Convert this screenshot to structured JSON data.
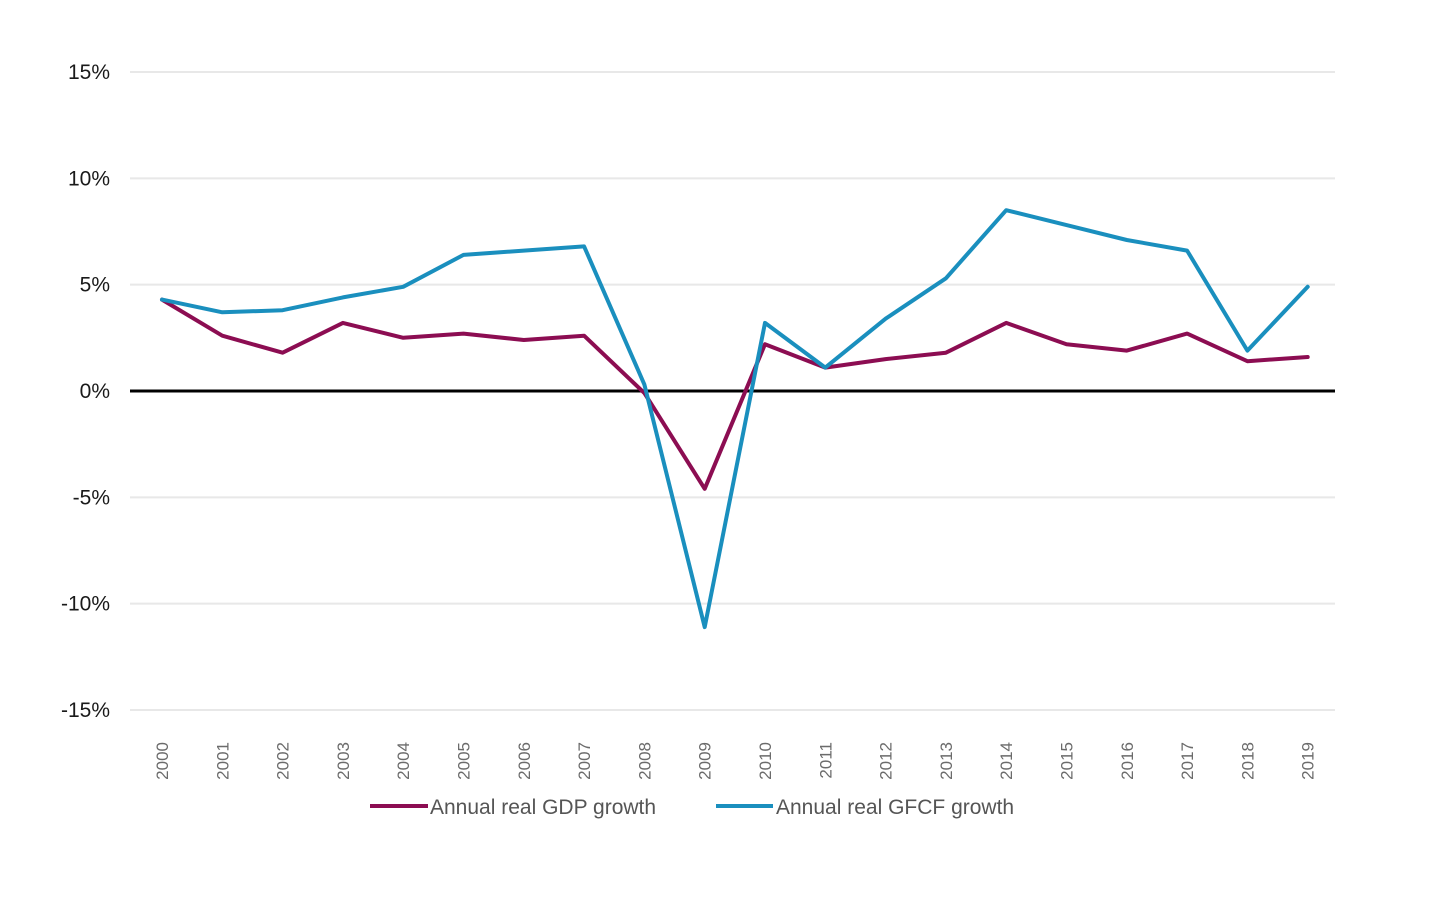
{
  "chart_data": {
    "type": "line",
    "title": "",
    "xlabel": "",
    "ylabel": "",
    "categories": [
      "2000",
      "2001",
      "2002",
      "2003",
      "2004",
      "2005",
      "2006",
      "2007",
      "2008",
      "2009",
      "2010",
      "2011",
      "2012",
      "2013",
      "2014",
      "2015",
      "2016",
      "2017",
      "2018",
      "2019"
    ],
    "series": [
      {
        "name": "Annual real GDP growth",
        "color": "#8c0d52",
        "values": [
          4.3,
          2.6,
          1.8,
          3.2,
          2.5,
          2.7,
          2.4,
          2.6,
          -0.1,
          -4.6,
          2.2,
          1.1,
          1.5,
          1.8,
          3.2,
          2.2,
          1.9,
          2.7,
          1.4,
          1.6
        ]
      },
      {
        "name": "Annual real GFCF growth",
        "color": "#1a8fbe",
        "values": [
          4.3,
          3.7,
          3.8,
          4.4,
          4.9,
          6.4,
          6.6,
          6.8,
          0.3,
          -11.1,
          3.2,
          1.1,
          3.4,
          5.3,
          8.5,
          7.8,
          7.1,
          6.6,
          1.9,
          4.9
        ]
      }
    ],
    "ylim": [
      -15,
      15
    ],
    "yticks": [
      {
        "value": 15,
        "label": "15%"
      },
      {
        "value": 10,
        "label": "10%"
      },
      {
        "value": 5,
        "label": "5%"
      },
      {
        "value": 0,
        "label": "0%"
      },
      {
        "value": -5,
        "label": "-5%"
      },
      {
        "value": -10,
        "label": "-10%"
      },
      {
        "value": -15,
        "label": "-15%"
      }
    ],
    "grid": true,
    "zero_line_color": "#000000",
    "grid_color": "#e8e8e8",
    "legend_position": "bottom-center"
  }
}
